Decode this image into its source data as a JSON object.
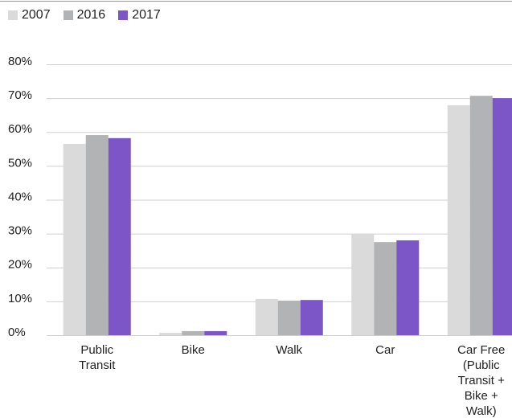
{
  "chart_data": {
    "type": "grouped-bar",
    "categories": [
      "Public Transit",
      "Bike",
      "Walk",
      "Car",
      "Car Free (Public Transit + Bike + Walk)"
    ],
    "series": [
      {
        "name": "2007",
        "color": "#dadada",
        "values": [
          56.5,
          0.7,
          10.7,
          29.9,
          67.9
        ]
      },
      {
        "name": "2016",
        "color": "#b1b3b5",
        "values": [
          59.1,
          1.2,
          10.2,
          27.5,
          70.7
        ]
      },
      {
        "name": "2017",
        "color": "#7c55c6",
        "values": [
          58.2,
          1.2,
          10.4,
          28.0,
          70.0
        ]
      }
    ],
    "ylim": [
      0,
      80
    ],
    "yticks": [
      {
        "value": 0,
        "label": "0%"
      },
      {
        "value": 10,
        "label": "10%"
      },
      {
        "value": 20,
        "label": "20%"
      },
      {
        "value": 30,
        "label": "30%"
      },
      {
        "value": 40,
        "label": "40%"
      },
      {
        "value": 50,
        "label": "50%"
      },
      {
        "value": 60,
        "label": "60%"
      },
      {
        "value": 70,
        "label": "70%"
      },
      {
        "value": 80,
        "label": "80%"
      }
    ],
    "grid": true,
    "legend": "top-left"
  }
}
